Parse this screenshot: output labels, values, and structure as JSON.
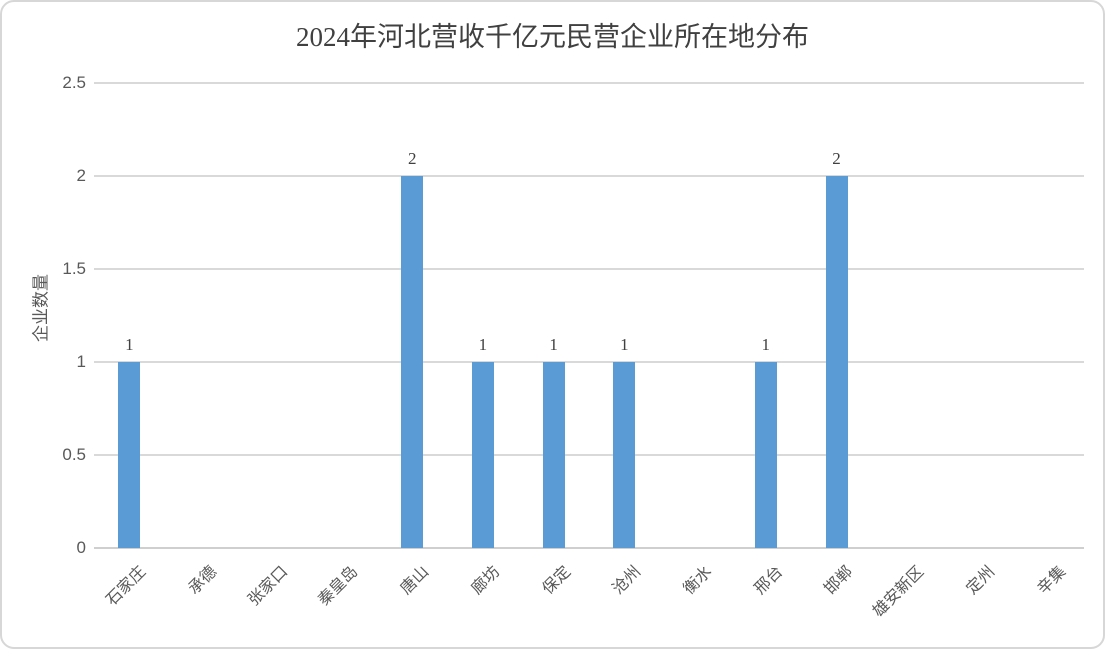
{
  "chart_data": {
    "type": "bar",
    "title": "2024年河北营收千亿元民营企业所在地分布",
    "xlabel": "",
    "ylabel": "企业数量",
    "categories": [
      "石家庄",
      "承德",
      "张家口",
      "秦皇岛",
      "唐山",
      "廊坊",
      "保定",
      "沧州",
      "衡水",
      "邢台",
      "邯郸",
      "雄安新区",
      "定州",
      "辛集"
    ],
    "values": [
      1,
      0,
      0,
      0,
      2,
      1,
      1,
      1,
      0,
      1,
      2,
      0,
      0,
      0
    ],
    "data_labels_shown": [
      "1",
      "",
      "",
      "",
      "2",
      "1",
      "1",
      "1",
      "",
      "1",
      "2",
      "",
      "",
      ""
    ],
    "ylim": [
      0,
      2.5
    ],
    "yticks": [
      0,
      0.5,
      1,
      1.5,
      2,
      2.5
    ],
    "ytick_labels": [
      "0",
      "0.5",
      "1",
      "1.5",
      "2",
      "2.5"
    ],
    "grid": true,
    "legend": "none",
    "x_label_rotation_deg": 45,
    "colors": {
      "bar": "#5B9BD5",
      "title": "#404040",
      "axis_text": "#595959",
      "data_label": "#404040",
      "gridline": "#D9D9D9",
      "axis_line": "#CFCFCF",
      "frame_border": "#D7D7D7",
      "background": "#FFFFFF"
    }
  }
}
